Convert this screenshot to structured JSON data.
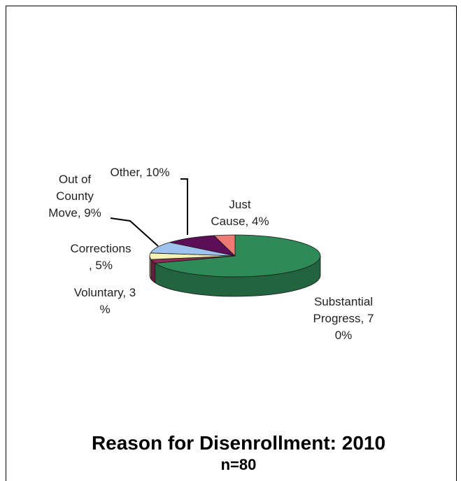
{
  "chart_data": {
    "type": "pie",
    "title": "Reason for Disenrollment: 2010",
    "subtitle": "n=80",
    "three_d": true,
    "slices": [
      {
        "label_lines": [
          "Substantial",
          "Progress, 7",
          "0%"
        ],
        "value": 70,
        "color": "#2e8b57"
      },
      {
        "label_lines": [
          "Voluntary, 3",
          "%"
        ],
        "value": 3,
        "color": "#8e2a55"
      },
      {
        "label_lines": [
          "Corrections",
          ", 5%"
        ],
        "value": 5,
        "color": "#f5f3b4"
      },
      {
        "label_lines": [
          "Out of",
          "County",
          "Move, 9%"
        ],
        "value": 9,
        "color": "#9ec3ee"
      },
      {
        "label_lines": [
          "Other, 10%"
        ],
        "value": 10,
        "color": "#5c0f57"
      },
      {
        "label_lines": [
          "Just",
          "Cause, 4%"
        ],
        "value": 4,
        "color": "#ef7a73"
      }
    ]
  }
}
